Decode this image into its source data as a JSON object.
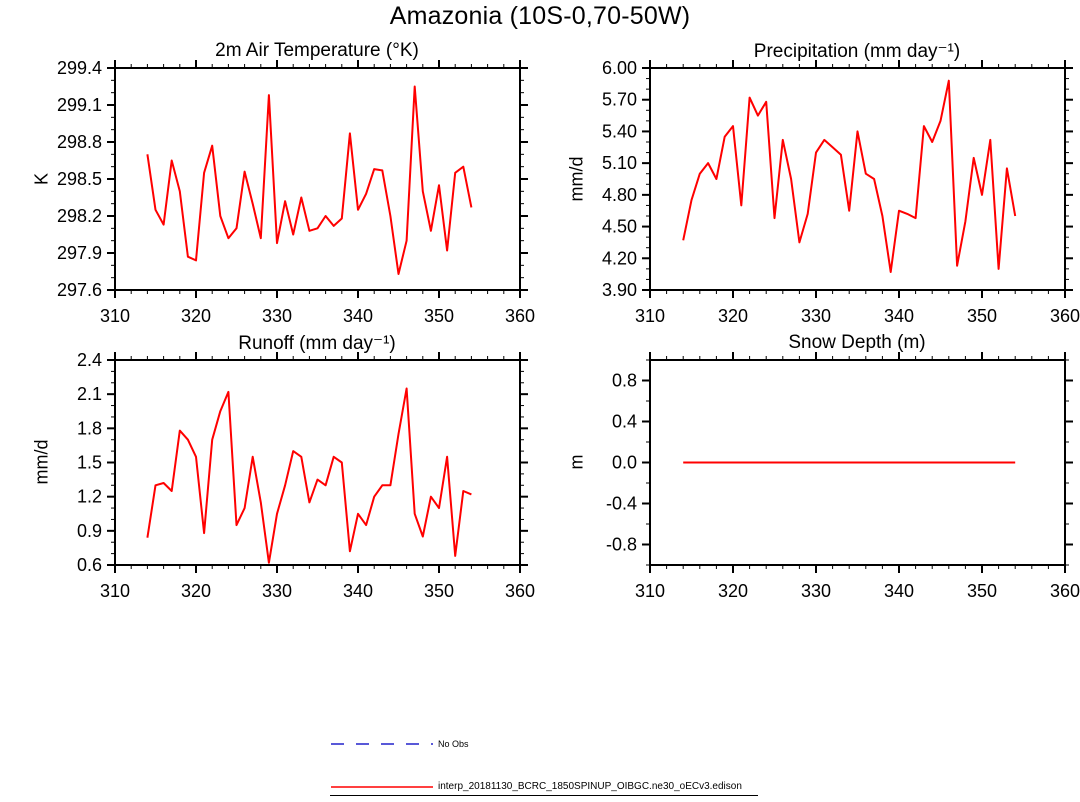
{
  "main_title": "Amazonia (10S-0,70-50W)",
  "legend": {
    "items": [
      {
        "label": "No Obs",
        "color": "#2222cc",
        "style": "dashed"
      },
      {
        "label": "interp_20181130_BCRC_1850SPINUP_OIBGC.ne30_oECv3.edison",
        "color": "#ff0000",
        "style": "solid"
      }
    ]
  },
  "chart_data": [
    {
      "id": "temperature",
      "type": "line",
      "title": "2m Air Temperature (°K)",
      "ylabel": "K",
      "xlim": [
        310,
        360
      ],
      "ylim": [
        297.6,
        299.4
      ],
      "xticks": [
        310,
        320,
        330,
        340,
        350,
        360
      ],
      "yticks": [
        297.6,
        297.9,
        298.2,
        298.5,
        298.8,
        299.1,
        299.4
      ],
      "ytick_labels": [
        "297.6",
        "297.9",
        "298.2",
        "298.5",
        "298.8",
        "299.1",
        "299.4"
      ],
      "x_minor_step": 2,
      "y_minor_step": 0.1,
      "series": [
        {
          "name": "interp_20181130_BCRC_1850SPINUP_OIBGC.ne30_oECv3.edison",
          "color": "#ff0000",
          "x": [
            314,
            315,
            316,
            317,
            318,
            319,
            320,
            321,
            322,
            323,
            324,
            325,
            326,
            327,
            328,
            329,
            330,
            331,
            332,
            333,
            334,
            335,
            336,
            337,
            338,
            339,
            340,
            341,
            342,
            343,
            344,
            345,
            346,
            347,
            348,
            349,
            350,
            351,
            352,
            353,
            354
          ],
          "values": [
            298.7,
            298.25,
            298.13,
            298.65,
            298.4,
            297.87,
            297.84,
            298.55,
            298.77,
            298.2,
            298.02,
            298.1,
            298.56,
            298.3,
            298.02,
            299.18,
            297.98,
            298.32,
            298.05,
            298.35,
            298.08,
            298.1,
            298.2,
            298.12,
            298.18,
            298.87,
            298.25,
            298.38,
            298.58,
            298.57,
            298.2,
            297.73,
            298.0,
            299.25,
            298.4,
            298.08,
            298.45,
            297.92,
            298.55,
            298.6,
            298.27
          ]
        }
      ]
    },
    {
      "id": "precipitation",
      "type": "line",
      "title": "Precipitation (mm day⁻¹)",
      "ylabel": "mm/d",
      "xlim": [
        310,
        360
      ],
      "ylim": [
        3.9,
        6.0
      ],
      "xticks": [
        310,
        320,
        330,
        340,
        350,
        360
      ],
      "yticks": [
        3.9,
        4.2,
        4.5,
        4.8,
        5.1,
        5.4,
        5.7,
        6.0
      ],
      "ytick_labels": [
        "3.90",
        "4.20",
        "4.50",
        "4.80",
        "5.10",
        "5.40",
        "5.70",
        "6.00"
      ],
      "x_minor_step": 2,
      "y_minor_step": 0.1,
      "series": [
        {
          "name": "interp_20181130_BCRC_1850SPINUP_OIBGC.ne30_oECv3.edison",
          "color": "#ff0000",
          "x": [
            314,
            315,
            316,
            317,
            318,
            319,
            320,
            321,
            322,
            323,
            324,
            325,
            326,
            327,
            328,
            329,
            330,
            331,
            332,
            333,
            334,
            335,
            336,
            337,
            338,
            339,
            340,
            341,
            342,
            343,
            344,
            345,
            346,
            347,
            348,
            349,
            350,
            351,
            352,
            353,
            354
          ],
          "values": [
            4.37,
            4.75,
            5.0,
            5.1,
            4.95,
            5.35,
            5.45,
            4.7,
            5.72,
            5.55,
            5.68,
            4.58,
            5.32,
            4.95,
            4.35,
            4.62,
            5.2,
            5.32,
            5.25,
            5.18,
            4.65,
            5.4,
            5.0,
            4.95,
            4.6,
            4.07,
            4.65,
            4.62,
            4.58,
            5.45,
            5.3,
            5.5,
            5.88,
            4.13,
            4.55,
            5.15,
            4.8,
            5.32,
            4.1,
            5.05,
            4.6
          ]
        }
      ]
    },
    {
      "id": "runoff",
      "type": "line",
      "title": "Runoff (mm day⁻¹)",
      "ylabel": "mm/d",
      "xlim": [
        310,
        360
      ],
      "ylim": [
        0.6,
        2.4
      ],
      "xticks": [
        310,
        320,
        330,
        340,
        350,
        360
      ],
      "yticks": [
        0.6,
        0.9,
        1.2,
        1.5,
        1.8,
        2.1,
        2.4
      ],
      "ytick_labels": [
        "0.6",
        "0.9",
        "1.2",
        "1.5",
        "1.8",
        "2.1",
        "2.4"
      ],
      "x_minor_step": 2,
      "y_minor_step": 0.1,
      "series": [
        {
          "name": "interp_20181130_BCRC_1850SPINUP_OIBGC.ne30_oECv3.edison",
          "color": "#ff0000",
          "x": [
            314,
            315,
            316,
            317,
            318,
            319,
            320,
            321,
            322,
            323,
            324,
            325,
            326,
            327,
            328,
            329,
            330,
            331,
            332,
            333,
            334,
            335,
            336,
            337,
            338,
            339,
            340,
            341,
            342,
            343,
            344,
            345,
            346,
            347,
            348,
            349,
            350,
            351,
            352,
            353,
            354
          ],
          "values": [
            0.84,
            1.3,
            1.32,
            1.25,
            1.78,
            1.7,
            1.55,
            0.88,
            1.7,
            1.95,
            2.12,
            0.95,
            1.1,
            1.55,
            1.15,
            0.62,
            1.05,
            1.3,
            1.6,
            1.55,
            1.15,
            1.35,
            1.3,
            1.55,
            1.5,
            0.72,
            1.05,
            0.95,
            1.2,
            1.3,
            1.3,
            1.75,
            2.15,
            1.05,
            0.85,
            1.2,
            1.1,
            1.55,
            0.68,
            1.25,
            1.22
          ]
        }
      ]
    },
    {
      "id": "snow-depth",
      "type": "line",
      "title": "Snow Depth (m)",
      "ylabel": "m",
      "xlim": [
        310,
        360
      ],
      "ylim": [
        -1.0,
        1.0
      ],
      "xticks": [
        310,
        320,
        330,
        340,
        350,
        360
      ],
      "yticks": [
        -0.8,
        -0.4,
        0.0,
        0.4,
        0.8
      ],
      "ytick_labels": [
        "-0.8",
        "-0.4",
        "0.0",
        "0.4",
        "0.8"
      ],
      "x_minor_step": 2,
      "y_minor_step": 0.2,
      "series": [
        {
          "name": "interp_20181130_BCRC_1850SPINUP_OIBGC.ne30_oECv3.edison",
          "color": "#ff0000",
          "x": [
            314,
            315,
            316,
            317,
            318,
            319,
            320,
            321,
            322,
            323,
            324,
            325,
            326,
            327,
            328,
            329,
            330,
            331,
            332,
            333,
            334,
            335,
            336,
            337,
            338,
            339,
            340,
            341,
            342,
            343,
            344,
            345,
            346,
            347,
            348,
            349,
            350,
            351,
            352,
            353,
            354
          ],
          "values": [
            0,
            0,
            0,
            0,
            0,
            0,
            0,
            0,
            0,
            0,
            0,
            0,
            0,
            0,
            0,
            0,
            0,
            0,
            0,
            0,
            0,
            0,
            0,
            0,
            0,
            0,
            0,
            0,
            0,
            0,
            0,
            0,
            0,
            0,
            0,
            0,
            0,
            0,
            0,
            0,
            0
          ]
        }
      ]
    }
  ]
}
